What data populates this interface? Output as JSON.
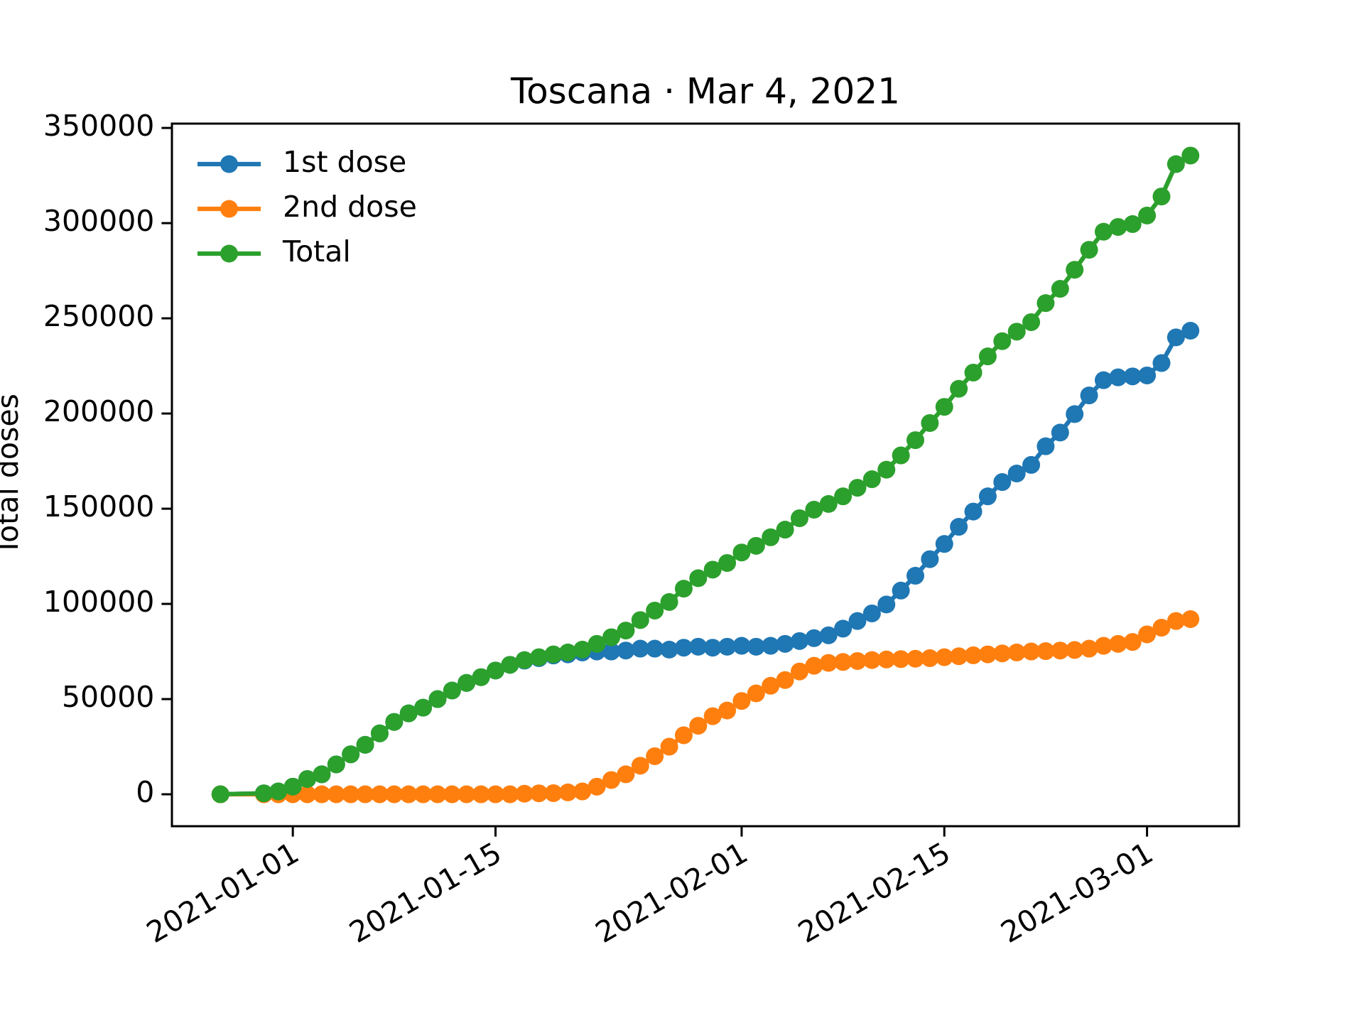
{
  "chart_data": {
    "type": "line",
    "title": "Toscana · Mar 4, 2021",
    "ylabel": "Total doses",
    "x": [
      "2020-12-27",
      "2020-12-30",
      "2020-12-31",
      "2021-01-01",
      "2021-01-02",
      "2021-01-03",
      "2021-01-04",
      "2021-01-05",
      "2021-01-06",
      "2021-01-07",
      "2021-01-08",
      "2021-01-09",
      "2021-01-10",
      "2021-01-11",
      "2021-01-12",
      "2021-01-13",
      "2021-01-14",
      "2021-01-15",
      "2021-01-16",
      "2021-01-17",
      "2021-01-18",
      "2021-01-19",
      "2021-01-20",
      "2021-01-21",
      "2021-01-22",
      "2021-01-23",
      "2021-01-24",
      "2021-01-25",
      "2021-01-26",
      "2021-01-27",
      "2021-01-28",
      "2021-01-29",
      "2021-01-30",
      "2021-01-31",
      "2021-02-01",
      "2021-02-02",
      "2021-02-03",
      "2021-02-04",
      "2021-02-05",
      "2021-02-06",
      "2021-02-07",
      "2021-02-08",
      "2021-02-09",
      "2021-02-10",
      "2021-02-11",
      "2021-02-12",
      "2021-02-13",
      "2021-02-14",
      "2021-02-15",
      "2021-02-16",
      "2021-02-17",
      "2021-02-18",
      "2021-02-19",
      "2021-02-20",
      "2021-02-21",
      "2021-02-22",
      "2021-02-23",
      "2021-02-24",
      "2021-02-25",
      "2021-02-26",
      "2021-02-27",
      "2021-02-28",
      "2021-03-01",
      "2021-03-02",
      "2021-03-03",
      "2021-03-04"
    ],
    "series": [
      {
        "name": "1st dose",
        "color": "#1f77b4",
        "values": [
          0,
          500,
          1500,
          4000,
          8000,
          10500,
          15700,
          21000,
          26000,
          32000,
          38000,
          42500,
          45500,
          50000,
          54500,
          58500,
          61500,
          65000,
          68000,
          70200,
          71500,
          72900,
          73500,
          74500,
          75000,
          75000,
          75500,
          76500,
          76500,
          76000,
          77000,
          77500,
          77000,
          77500,
          78000,
          77500,
          78000,
          79000,
          80500,
          82000,
          83500,
          87000,
          91000,
          95000,
          99700,
          107000,
          114800,
          123500,
          131500,
          140500,
          148500,
          156500,
          164000,
          168500,
          173000,
          182800,
          190000,
          199700,
          209500,
          217500,
          219000,
          219500,
          220000,
          226500,
          240000,
          243500
        ]
      },
      {
        "name": "2nd dose",
        "color": "#ff7f0e",
        "values": [
          0,
          0,
          0,
          0,
          0,
          0,
          0,
          0,
          0,
          0,
          0,
          0,
          0,
          0,
          0,
          0,
          0,
          0,
          0,
          300,
          500,
          600,
          1000,
          1500,
          4000,
          7500,
          10500,
          15000,
          20000,
          25000,
          31000,
          36000,
          41000,
          44000,
          49000,
          53000,
          57000,
          60000,
          64500,
          67500,
          69000,
          69500,
          70000,
          70500,
          70800,
          71000,
          71200,
          71500,
          72000,
          72500,
          73000,
          73500,
          74000,
          74500,
          75000,
          75200,
          75500,
          75800,
          76500,
          78000,
          79000,
          80000,
          84000,
          87500,
          91000,
          92000
        ]
      },
      {
        "name": "Total",
        "color": "#2ca02c",
        "values": [
          0,
          500,
          1500,
          4000,
          8000,
          10500,
          15700,
          21000,
          26000,
          32000,
          38000,
          42500,
          45500,
          50000,
          54500,
          58500,
          61500,
          65000,
          68000,
          70500,
          72000,
          73500,
          74500,
          76000,
          79000,
          82500,
          86000,
          91500,
          96500,
          101000,
          108000,
          113500,
          118000,
          121500,
          127000,
          130500,
          135000,
          139000,
          145000,
          149500,
          152500,
          156500,
          161000,
          165500,
          170500,
          178000,
          186000,
          195000,
          203500,
          213000,
          221500,
          230000,
          238000,
          243000,
          248000,
          258000,
          265500,
          275500,
          286000,
          295500,
          298000,
          299500,
          304000,
          314000,
          331000,
          335500
        ]
      }
    ],
    "xlim": [
      "2020-12-23T15:36:00Z",
      "2021-03-07T08:24:00Z"
    ],
    "xticks": [
      "2021-01-01",
      "2021-01-15",
      "2021-02-01",
      "2021-02-15",
      "2021-03-01"
    ],
    "ylim": [
      -16775,
      352275
    ],
    "yticks": [
      0,
      50000,
      100000,
      150000,
      200000,
      250000,
      300000,
      350000
    ],
    "legend": "upper left",
    "grid": false
  }
}
